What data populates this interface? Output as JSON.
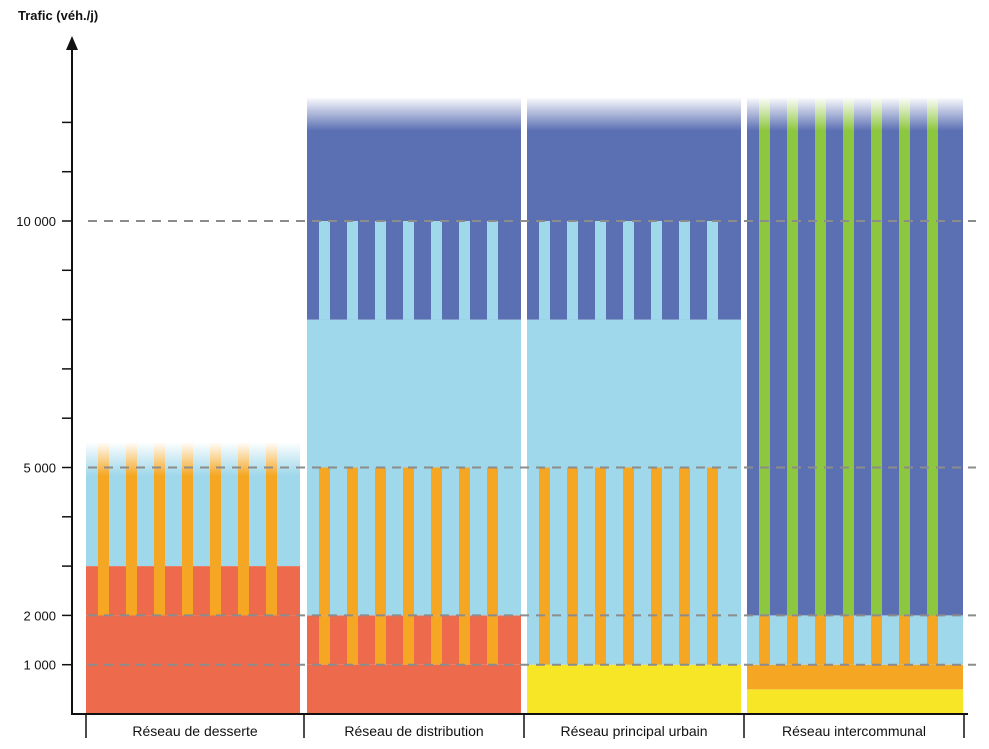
{
  "chart_data": {
    "type": "bar",
    "ylabel": "Trafic (véh./j)",
    "ylim": [
      0,
      12500
    ],
    "y_tick_labels": [
      {
        "value": 1000,
        "label": "1 000"
      },
      {
        "value": 2000,
        "label": "2 000"
      },
      {
        "value": 5000,
        "label": "5 000"
      },
      {
        "value": 10000,
        "label": "10 000"
      }
    ],
    "minor_tick_step": 1000,
    "dashed_reference_lines": [
      1000,
      2000,
      5000,
      10000
    ],
    "categories": [
      "Réseau de desserte",
      "Réseau de distribution",
      "Réseau principal urbain",
      "Réseau intercommunal"
    ],
    "colors": {
      "red": "#EE6A4C",
      "orange": "#F5A623",
      "light_blue": "#9ED8EA",
      "dark_blue": "#5B6FB3",
      "green": "#8DC63F",
      "yellow": "#F7E626"
    },
    "bars": [
      {
        "category": "Réseau de desserte",
        "segments": [
          {
            "from": 0,
            "to": 2000,
            "fill": "red"
          },
          {
            "from": 2000,
            "to": 3000,
            "fill": "red",
            "stripe": "orange"
          },
          {
            "from": 3000,
            "to": 5500,
            "fill": "light_blue",
            "stripe": "orange",
            "fade_top": true
          }
        ]
      },
      {
        "category": "Réseau de distribution",
        "segments": [
          {
            "from": 0,
            "to": 1000,
            "fill": "red"
          },
          {
            "from": 1000,
            "to": 2000,
            "fill": "red",
            "stripe": "orange"
          },
          {
            "from": 2000,
            "to": 5000,
            "fill": "light_blue",
            "stripe": "orange"
          },
          {
            "from": 5000,
            "to": 8000,
            "fill": "light_blue"
          },
          {
            "from": 8000,
            "to": 10000,
            "fill": "dark_blue",
            "stripe": "light_blue"
          },
          {
            "from": 10000,
            "to": 12500,
            "fill": "dark_blue",
            "fade_top": true
          }
        ]
      },
      {
        "category": "Réseau principal urbain",
        "segments": [
          {
            "from": 0,
            "to": 1000,
            "fill": "yellow"
          },
          {
            "from": 1000,
            "to": 5000,
            "fill": "light_blue",
            "stripe": "orange"
          },
          {
            "from": 5000,
            "to": 8000,
            "fill": "light_blue"
          },
          {
            "from": 8000,
            "to": 10000,
            "fill": "dark_blue",
            "stripe": "light_blue"
          },
          {
            "from": 10000,
            "to": 12500,
            "fill": "dark_blue",
            "fade_top": true
          }
        ]
      },
      {
        "category": "Réseau intercommunal",
        "segments": [
          {
            "from": 0,
            "to": 500,
            "fill": "yellow"
          },
          {
            "from": 500,
            "to": 1000,
            "fill": "orange"
          },
          {
            "from": 1000,
            "to": 2000,
            "fill": "light_blue",
            "stripe": "orange"
          },
          {
            "from": 2000,
            "to": 12500,
            "fill": "dark_blue",
            "stripe": "green",
            "fade_top": true
          }
        ]
      }
    ]
  }
}
